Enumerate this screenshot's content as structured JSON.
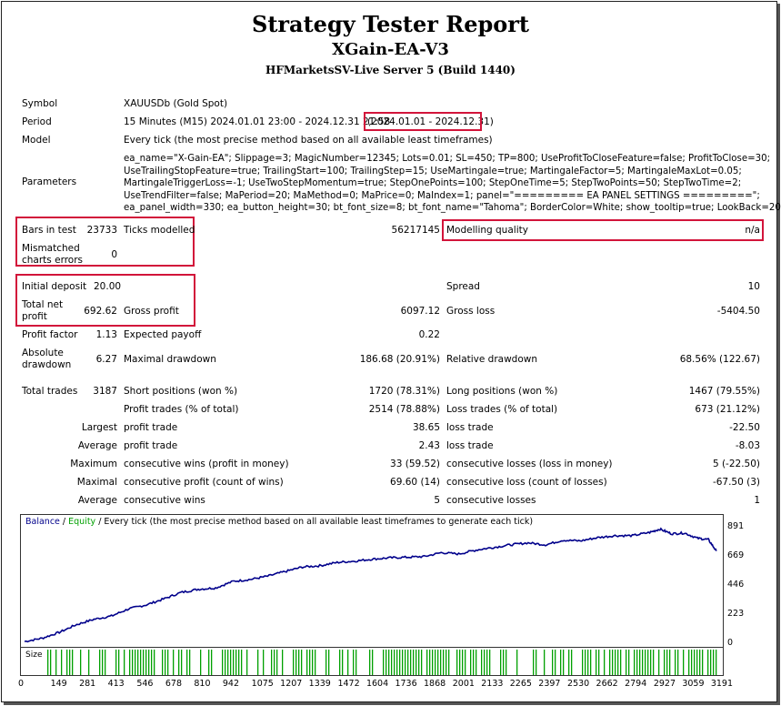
{
  "report": {
    "title": "Strategy Tester Report",
    "expert": "XGain-EA-V3",
    "server": "HFMarketsSV-Live Server 5 (Build 1440)"
  },
  "settings": {
    "symbol_label": "Symbol",
    "symbol_value": "XAUUSDb (Gold Spot)",
    "period_label": "Period",
    "period_value": "15 Minutes (M15) 2024.01.01 23:00 - 2024.12.31 21:58",
    "period_range": "(2024.01.01 - 2024.12.31)",
    "model_label": "Model",
    "model_value": "Every tick (the most precise method based on all available least timeframes)",
    "parameters_label": "Parameters",
    "parameters_lines": [
      "ea_name=\"X-Gain-EA\"; Slippage=3; MagicNumber=12345; Lots=0.01; SL=450; TP=800; UseProfitToCloseFeature=false; ProfitToClose=30;",
      "UseTrailingStopFeature=true; TrailingStart=100; TrailingStep=15; UseMartingale=true; MartingaleFactor=5; MartingaleMaxLot=0.05;",
      "MartingaleTriggerLoss=-1; UseTwoStepMomentum=true; StepOnePoints=100; StepOneTime=5; StepTwoPoints=50; StepTwoTime=2;",
      "UseTrendFilter=false; MaPeriod=20; MaMethod=0; MaPrice=0; MaIndex=1; panel=\"========= EA PANEL SETTINGS =========\";",
      "ea_panel_width=330; ea_button_height=30; bt_font_size=8; bt_font_name=\"Tahoma\"; BorderColor=White; show_tooltip=true; LookBack=20;"
    ]
  },
  "stats": {
    "bars_label": "Bars in test",
    "bars_value": "23733",
    "ticks_label": "Ticks modelled",
    "ticks_value": "56217145",
    "quality_label": "Modelling quality",
    "quality_value": "n/a",
    "mismatch_label_1": "Mismatched",
    "mismatch_label_2": "charts errors",
    "mismatch_value": "0",
    "deposit_label": "Initial deposit",
    "deposit_value": "20.00",
    "spread_label": "Spread",
    "spread_value": "10",
    "netprofit_label_1": "Total net",
    "netprofit_label_2": "profit",
    "netprofit_value": "692.62",
    "grossprofit_label": "Gross profit",
    "grossprofit_value": "6097.12",
    "grossloss_label": "Gross loss",
    "grossloss_value": "-5404.50",
    "pf_label": "Profit factor",
    "pf_value": "1.13",
    "payoff_label": "Expected payoff",
    "payoff_value": "0.22",
    "absdd_label_1": "Absolute",
    "absdd_label_2": "drawdown",
    "absdd_value": "6.27",
    "maxdd_label": "Maximal drawdown",
    "maxdd_value": "186.68 (20.91%)",
    "reldd_label": "Relative drawdown",
    "reldd_value": "68.56% (122.67)",
    "trades_label": "Total trades",
    "trades_value": "3187",
    "short_label": "Short positions (won %)",
    "short_value": "1720 (78.31%)",
    "long_label": "Long positions (won %)",
    "long_value": "1467 (79.55%)",
    "profit_trades_label": "Profit trades (% of total)",
    "profit_trades_value": "2514 (78.88%)",
    "loss_trades_label": "Loss trades (% of total)",
    "loss_trades_value": "673 (21.12%)",
    "largest_label": "Largest",
    "largest_profit_label": "profit trade",
    "largest_profit_value": "38.65",
    "largest_loss_label": "loss trade",
    "largest_loss_value": "-22.50",
    "average_label": "Average",
    "average_profit_label": "profit trade",
    "average_profit_value": "2.43",
    "average_loss_label": "loss trade",
    "average_loss_value": "-8.03",
    "maximum_label": "Maximum",
    "max_cons_wins_label": "consecutive wins (profit in money)",
    "max_cons_wins_value": "33 (59.52)",
    "max_cons_losses_label": "consecutive losses (loss in money)",
    "max_cons_losses_value": "5 (-22.50)",
    "maximal_label": "Maximal",
    "maximal_profit_label": "consecutive profit (count of wins)",
    "maximal_profit_value": "69.60 (14)",
    "maximal_loss_label": "consecutive loss (count of losses)",
    "maximal_loss_value": "-67.50 (3)",
    "avg_label": "Average",
    "avg_wins_label": "consecutive wins",
    "avg_wins_value": "5",
    "avg_losses_label": "consecutive losses",
    "avg_losses_value": "1"
  },
  "chart_data": {
    "type": "line",
    "legend_balance": "Balance",
    "legend_sep": " / ",
    "legend_equity": "Equity",
    "legend_rest": " / Every tick (the most precise method based on all available least timeframes to generate each tick)",
    "size_label": "Size",
    "ylim": [
      0,
      891
    ],
    "y_ticks": [
      "891",
      "669",
      "446",
      "223",
      "0"
    ],
    "x_ticks": [
      "0",
      "149",
      "281",
      "413",
      "546",
      "678",
      "810",
      "942",
      "1075",
      "1207",
      "1339",
      "1472",
      "1604",
      "1736",
      "1868",
      "2001",
      "2133",
      "2265",
      "2397",
      "2530",
      "2662",
      "2794",
      "2927",
      "3059",
      "3191"
    ],
    "xlim": [
      0,
      3200
    ],
    "series": [
      {
        "name": "Balance",
        "color": "#00008b",
        "x": [
          0,
          80,
          160,
          240,
          320,
          400,
          480,
          560,
          640,
          720,
          800,
          880,
          960,
          1040,
          1120,
          1200,
          1280,
          1360,
          1440,
          1520,
          1600,
          1680,
          1760,
          1840,
          1920,
          2000,
          2080,
          2160,
          2240,
          2320,
          2400,
          2480,
          2560,
          2640,
          2720,
          2800,
          2880,
          2927,
          2980,
          3040,
          3100,
          3150,
          3187
        ],
        "y": [
          20,
          45,
          90,
          150,
          190,
          215,
          270,
          300,
          345,
          395,
          420,
          430,
          480,
          495,
          520,
          555,
          590,
          600,
          625,
          635,
          650,
          660,
          665,
          670,
          700,
          690,
          720,
          740,
          760,
          775,
          760,
          795,
          790,
          815,
          830,
          830,
          855,
          880,
          845,
          850,
          810,
          800,
          713
        ]
      },
      {
        "name": "Equity",
        "color": "#00a000"
      }
    ],
    "size_color": "#00a000"
  }
}
